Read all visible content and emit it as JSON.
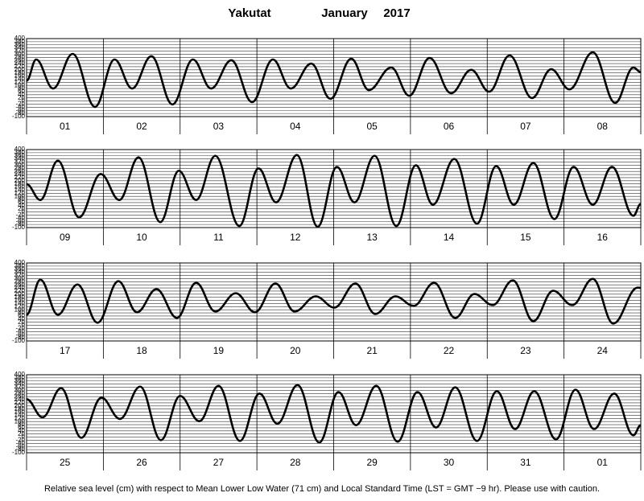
{
  "title_location": "Yakutat",
  "title_month": "January",
  "title_year": "2017",
  "note": "Relative sea level (cm) with respect to Mean Lower Low Water (71 cm) and Local Standard Time (LST = GMT −9 hr). Please use with caution.",
  "chart_data": [
    {
      "type": "line",
      "color": "#000000",
      "grid": true,
      "days": [
        "01",
        "02",
        "03",
        "04",
        "05",
        "06",
        "07",
        "08"
      ],
      "xlim": [
        0,
        192
      ],
      "xticks": [
        0,
        24,
        48,
        72,
        96,
        120,
        144,
        168,
        192
      ],
      "ylim": [
        -100,
        400
      ],
      "yticks": [
        -100,
        -80,
        -60,
        -40,
        -20,
        0,
        20,
        40,
        60,
        80,
        100,
        120,
        140,
        160,
        180,
        200,
        220,
        240,
        260,
        280,
        300,
        320,
        340,
        360,
        380,
        400
      ],
      "x": [
        0,
        3,
        8.3,
        14.4,
        21.4,
        27.5,
        33,
        39,
        45.6,
        52,
        57.7,
        64,
        70.5,
        77,
        82.6,
        89,
        95,
        101.5,
        107,
        114,
        119.6,
        126,
        132.7,
        139,
        144.6,
        151,
        158,
        164,
        169.7,
        177,
        184,
        189.7,
        192
      ],
      "values": [
        130,
        266,
        80,
        302,
        -38,
        266,
        80,
        287,
        -22,
        266,
        80,
        261,
        -7,
        266,
        80,
        240,
        14,
        271,
        70,
        215,
        34,
        276,
        50,
        200,
        60,
        292,
        19,
        204,
        75,
        312,
        -12,
        215,
        185
      ]
    },
    {
      "type": "line",
      "color": "#000000",
      "grid": true,
      "days": [
        "09",
        "10",
        "11",
        "12",
        "13",
        "14",
        "15",
        "16"
      ],
      "xlim": [
        0,
        192
      ],
      "xticks": [
        0,
        24,
        48,
        72,
        96,
        120,
        144,
        168,
        192
      ],
      "ylim": [
        -100,
        400
      ],
      "yticks": [
        -100,
        -80,
        -60,
        -40,
        -20,
        0,
        20,
        40,
        60,
        80,
        100,
        120,
        140,
        160,
        180,
        200,
        220,
        240,
        260,
        280,
        300,
        320,
        340,
        360,
        380,
        400
      ],
      "x": [
        0,
        4.3,
        9.8,
        16.4,
        23.2,
        29,
        35,
        41.8,
        47.6,
        53,
        59,
        66.5,
        72.5,
        78,
        84.5,
        91,
        97,
        102.5,
        108.8,
        115.6,
        121.7,
        127,
        133.7,
        140.8,
        146.8,
        152.3,
        158.4,
        165,
        171,
        177,
        183,
        189.7,
        192
      ],
      "values": [
        178,
        77,
        329,
        -34,
        243,
        77,
        350,
        -65,
        264,
        77,
        360,
        -90,
        279,
        62,
        365,
        -95,
        289,
        62,
        360,
        -90,
        299,
        47,
        340,
        -75,
        294,
        47,
        314,
        -45,
        289,
        47,
        289,
        -24,
        52
      ]
    },
    {
      "type": "line",
      "color": "#000000",
      "grid": true,
      "days": [
        "17",
        "18",
        "19",
        "20",
        "21",
        "22",
        "23",
        "24"
      ],
      "xlim": [
        0,
        192
      ],
      "xticks": [
        0,
        24,
        48,
        72,
        96,
        120,
        144,
        168,
        192
      ],
      "ylim": [
        -100,
        400
      ],
      "yticks": [
        -100,
        -80,
        -60,
        -40,
        -20,
        0,
        20,
        40,
        60,
        80,
        100,
        120,
        140,
        160,
        180,
        200,
        220,
        240,
        260,
        280,
        300,
        320,
        340,
        360,
        380,
        400
      ],
      "x": [
        0,
        4.3,
        9.8,
        15.9,
        22.2,
        28.7,
        34.5,
        40.6,
        47,
        53,
        59,
        65.4,
        71.4,
        77.8,
        83.8,
        90.4,
        96.2,
        102.8,
        109,
        115.3,
        121,
        127.4,
        134,
        140,
        145.7,
        152,
        158.4,
        164.6,
        170.6,
        177,
        183.4,
        191,
        192
      ],
      "values": [
        68,
        293,
        68,
        262,
        17,
        283,
        84,
        232,
        48,
        273,
        89,
        206,
        84,
        268,
        89,
        186,
        114,
        268,
        73,
        186,
        125,
        273,
        48,
        201,
        130,
        288,
        27,
        222,
        130,
        298,
        12,
        242,
        240
      ]
    },
    {
      "type": "line",
      "color": "#000000",
      "grid": true,
      "days": [
        "25",
        "26",
        "27",
        "28",
        "29",
        "30",
        "31",
        "01"
      ],
      "xlim": [
        0,
        192
      ],
      "xticks": [
        0,
        24,
        48,
        72,
        96,
        120,
        144,
        168,
        192
      ],
      "ylim": [
        -100,
        400
      ],
      "yticks": [
        -100,
        -80,
        -60,
        -40,
        -20,
        0,
        20,
        40,
        60,
        80,
        100,
        120,
        140,
        160,
        180,
        200,
        220,
        240,
        260,
        280,
        300,
        320,
        340,
        360,
        380,
        400
      ],
      "x": [
        0,
        5,
        10.8,
        17.1,
        23.4,
        29.2,
        35.5,
        42,
        48,
        54,
        60,
        66.7,
        72.8,
        78.4,
        84.7,
        91.5,
        97.5,
        103,
        109.3,
        116,
        122.2,
        128,
        134,
        140.8,
        147,
        152.7,
        158.7,
        165.5,
        171.6,
        177.4,
        183.7,
        189.7,
        192
      ],
      "values": [
        243,
        127,
        314,
        -4,
        253,
        117,
        324,
        -19,
        264,
        102,
        329,
        -24,
        279,
        86,
        334,
        -34,
        289,
        77,
        329,
        -29,
        289,
        62,
        319,
        -24,
        294,
        52,
        294,
        -14,
        304,
        52,
        279,
        12,
        77
      ]
    }
  ]
}
